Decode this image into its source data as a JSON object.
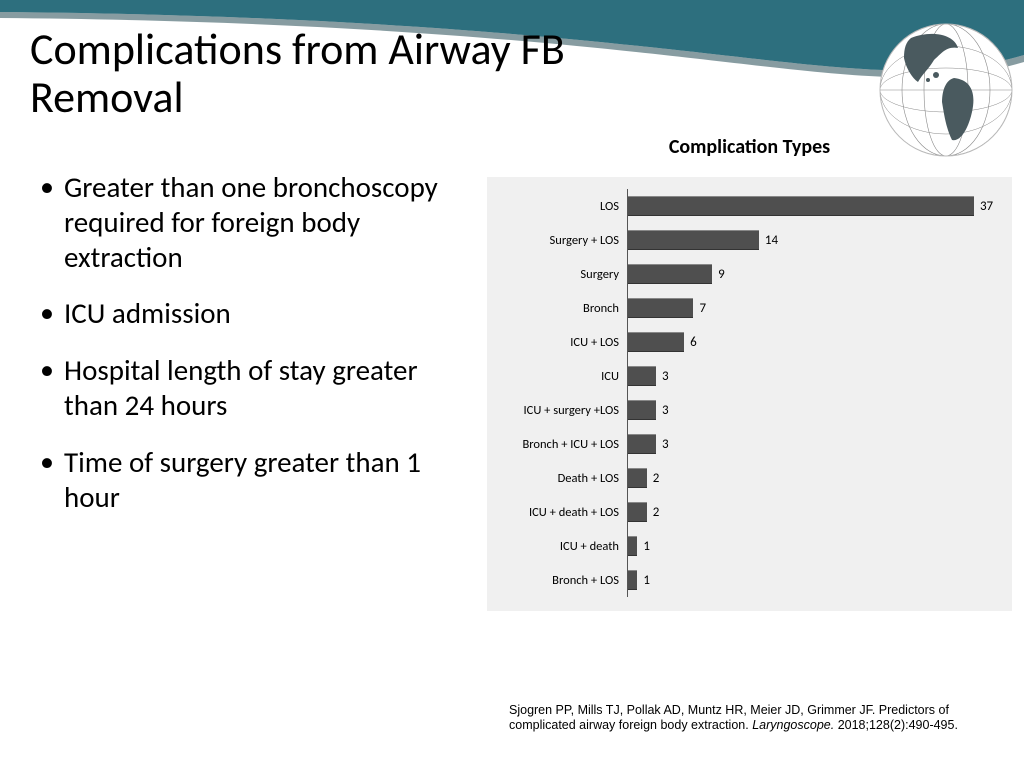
{
  "header": {
    "banner_color": "#2d6f7e",
    "banner_shadow": "#0f3a44"
  },
  "title": "Complications from Airway FB Removal",
  "bullets": [
    "Greater than one bronchoscopy required for foreign body extraction",
    "ICU admission",
    "Hospital length of stay greater than 24 hours",
    "Time of surgery greater than 1 hour"
  ],
  "chart": {
    "type": "bar-horizontal",
    "title": "Complication Types",
    "bar_color": "#4f4f4f",
    "background": "#f0f0f0",
    "max_value": 40,
    "items": [
      {
        "label": "LOS",
        "value": 37
      },
      {
        "label": "Surgery + LOS",
        "value": 14
      },
      {
        "label": "Surgery",
        "value": 9
      },
      {
        "label": "Bronch",
        "value": 7
      },
      {
        "label": "ICU + LOS",
        "value": 6
      },
      {
        "label": "ICU",
        "value": 3
      },
      {
        "label": "ICU + surgery +LOS",
        "value": 3
      },
      {
        "label": "Bronch + ICU + LOS",
        "value": 3
      },
      {
        "label": "Death + LOS",
        "value": 2
      },
      {
        "label": "ICU + death + LOS",
        "value": 2
      },
      {
        "label": "ICU + death",
        "value": 1
      },
      {
        "label": "Bronch + LOS",
        "value": 1
      }
    ]
  },
  "citation": {
    "authors": "Sjogren PP, Mills TJ, Pollak AD, Muntz HR, Meier JD, Grimmer JF.",
    "title": "Predictors of complicated airway foreign body extraction.",
    "journal": "Laryngoscope.",
    "ref": "2018;128(2):490-495."
  }
}
